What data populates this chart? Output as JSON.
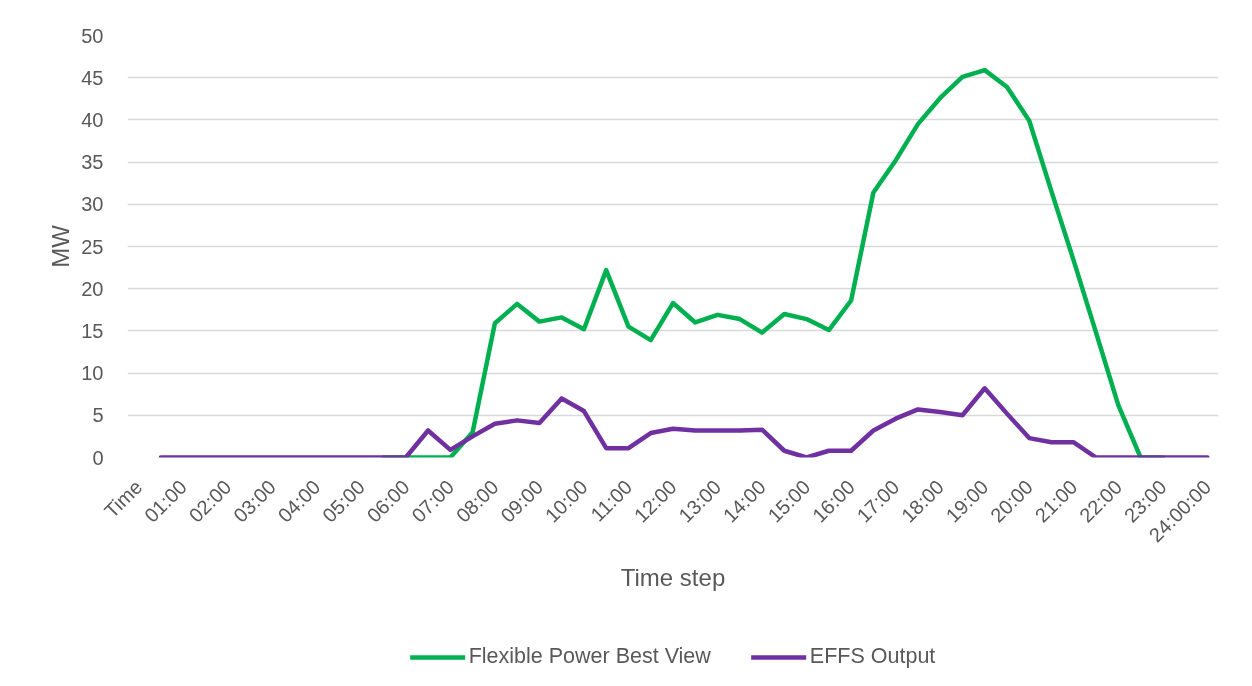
{
  "chart_data": {
    "type": "line",
    "xlabel": "Time step",
    "ylabel": "MW",
    "categories": [
      "Time",
      null,
      "01:00",
      null,
      "02:00",
      null,
      "03:00",
      null,
      "04:00",
      null,
      "05:00",
      null,
      "06:00",
      null,
      "07:00",
      null,
      "08:00",
      null,
      "09:00",
      null,
      "10:00",
      null,
      "11:00",
      null,
      "12:00",
      null,
      "13:00",
      null,
      "14:00",
      null,
      "15:00",
      null,
      "16:00",
      null,
      "17:00",
      null,
      "18:00",
      null,
      "19:00",
      null,
      "20:00",
      null,
      "21:00",
      null,
      "22:00",
      null,
      "23:00",
      null,
      "24:00:00"
    ],
    "series": [
      {
        "name": "Flexible Power Best View",
        "color": "#00b050",
        "values": [
          null,
          null,
          null,
          null,
          null,
          null,
          null,
          null,
          null,
          null,
          null,
          0,
          0,
          0,
          0,
          3.0,
          15.9,
          18.2,
          16.1,
          16.6,
          15.2,
          22.2,
          15.5,
          13.9,
          18.3,
          16.0,
          16.9,
          16.4,
          14.8,
          17.0,
          16.4,
          15.1,
          18.6,
          31.4,
          35.2,
          39.5,
          42.6,
          45.1,
          45.9,
          43.9,
          39.9,
          31.5,
          23.3,
          14.8,
          6.2,
          0,
          0,
          null,
          null
        ]
      },
      {
        "name": "EFFS Output",
        "color": "#7030a0",
        "values": [
          null,
          0,
          0,
          0,
          0,
          0,
          0,
          0,
          0,
          0,
          0,
          0,
          0,
          3.2,
          0.9,
          2.5,
          4.0,
          4.4,
          4.1,
          7.0,
          5.5,
          1.1,
          1.1,
          2.9,
          3.4,
          3.2,
          3.2,
          3.2,
          3.3,
          0.8,
          0.0,
          0.8,
          0.8,
          3.2,
          4.6,
          5.7,
          5.4,
          5.0,
          8.2,
          5.2,
          2.3,
          1.8,
          1.8,
          0,
          0,
          0,
          0,
          0,
          0
        ]
      }
    ],
    "ylim": [
      0,
      50
    ],
    "yticks": [
      0,
      5,
      10,
      15,
      20,
      25,
      30,
      35,
      40,
      45,
      50
    ],
    "grid": "y",
    "legend": "bottom",
    "line_style": "solid"
  }
}
